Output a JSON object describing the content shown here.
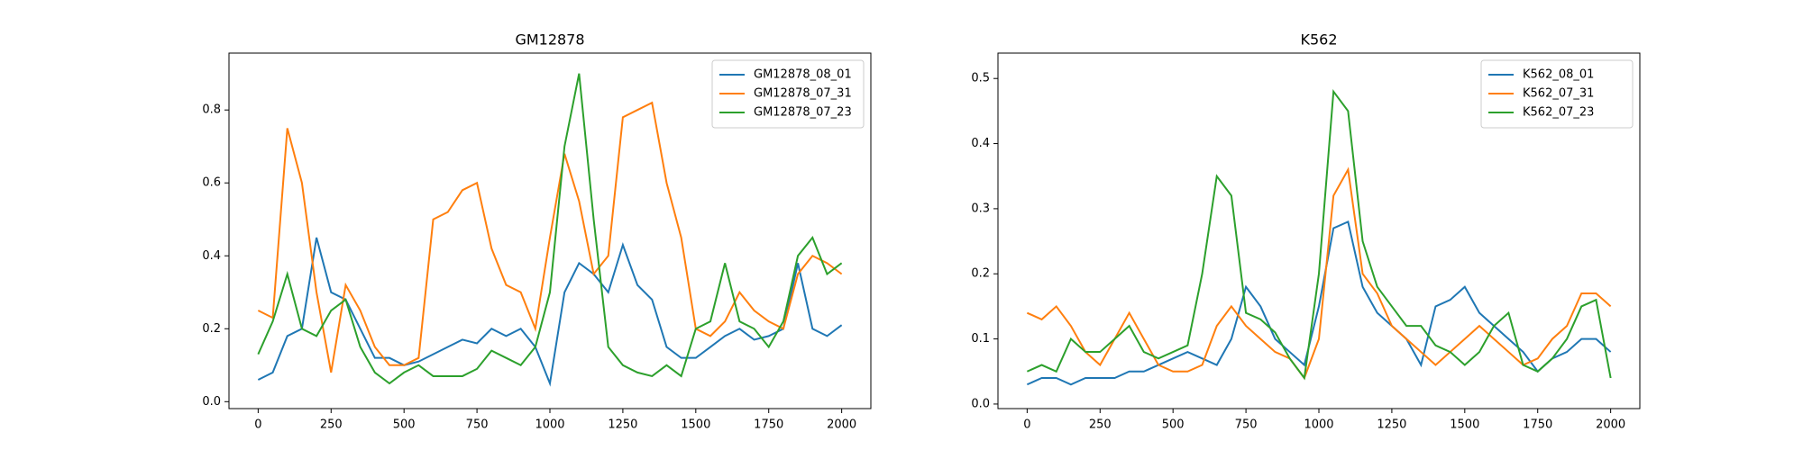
{
  "chart_data": [
    {
      "type": "line",
      "title": "GM12878",
      "x": [
        0,
        50,
        100,
        150,
        200,
        250,
        300,
        350,
        400,
        450,
        500,
        550,
        600,
        650,
        700,
        750,
        800,
        850,
        900,
        950,
        1000,
        1050,
        1100,
        1150,
        1200,
        1250,
        1300,
        1350,
        1400,
        1450,
        1500,
        1550,
        1600,
        1650,
        1700,
        1750,
        1800,
        1850,
        1900,
        1950,
        2000
      ],
      "series": [
        {
          "name": "GM12878_08_01",
          "color": "#1f77b4",
          "values": [
            0.06,
            0.08,
            0.18,
            0.2,
            0.45,
            0.3,
            0.28,
            0.2,
            0.12,
            0.12,
            0.1,
            0.11,
            0.13,
            0.15,
            0.17,
            0.16,
            0.2,
            0.18,
            0.2,
            0.15,
            0.05,
            0.3,
            0.38,
            0.35,
            0.3,
            0.43,
            0.32,
            0.28,
            0.15,
            0.12,
            0.12,
            0.15,
            0.18,
            0.2,
            0.17,
            0.18,
            0.2,
            0.38,
            0.2,
            0.18,
            0.21
          ]
        },
        {
          "name": "GM12878_07_31",
          "color": "#ff7f0e",
          "values": [
            0.25,
            0.23,
            0.75,
            0.6,
            0.3,
            0.08,
            0.32,
            0.25,
            0.15,
            0.1,
            0.1,
            0.12,
            0.5,
            0.52,
            0.58,
            0.6,
            0.42,
            0.32,
            0.3,
            0.2,
            0.45,
            0.68,
            0.55,
            0.35,
            0.4,
            0.78,
            0.8,
            0.82,
            0.6,
            0.45,
            0.2,
            0.18,
            0.22,
            0.3,
            0.25,
            0.22,
            0.2,
            0.35,
            0.4,
            0.38,
            0.35
          ]
        },
        {
          "name": "GM12878_07_23",
          "color": "#2ca02c",
          "values": [
            0.13,
            0.22,
            0.35,
            0.2,
            0.18,
            0.25,
            0.28,
            0.15,
            0.08,
            0.05,
            0.08,
            0.1,
            0.07,
            0.07,
            0.07,
            0.09,
            0.14,
            0.12,
            0.1,
            0.15,
            0.3,
            0.7,
            0.9,
            0.5,
            0.15,
            0.1,
            0.08,
            0.07,
            0.1,
            0.07,
            0.2,
            0.22,
            0.38,
            0.22,
            0.2,
            0.15,
            0.22,
            0.4,
            0.45,
            0.35,
            0.38
          ]
        }
      ],
      "xlim": [
        -100,
        2100
      ],
      "xticks": [
        0,
        250,
        500,
        750,
        1000,
        1250,
        1500,
        1750,
        2000
      ],
      "ylim": [
        -0.019,
        0.956
      ],
      "yticks": [
        {
          "value": 0,
          "label": "0.0"
        },
        0.2,
        0.4,
        0.6,
        0.8
      ],
      "legend": "upper right"
    },
    {
      "type": "line",
      "title": "K562",
      "x": [
        0,
        50,
        100,
        150,
        200,
        250,
        300,
        350,
        400,
        450,
        500,
        550,
        600,
        650,
        700,
        750,
        800,
        850,
        900,
        950,
        1000,
        1050,
        1100,
        1150,
        1200,
        1250,
        1300,
        1350,
        1400,
        1450,
        1500,
        1550,
        1600,
        1650,
        1700,
        1750,
        1800,
        1850,
        1900,
        1950,
        2000
      ],
      "series": [
        {
          "name": "K562_08_01",
          "color": "#1f77b4",
          "values": [
            0.03,
            0.04,
            0.04,
            0.03,
            0.04,
            0.04,
            0.04,
            0.05,
            0.05,
            0.06,
            0.07,
            0.08,
            0.07,
            0.06,
            0.1,
            0.18,
            0.15,
            0.1,
            0.08,
            0.06,
            0.15,
            0.27,
            0.28,
            0.18,
            0.14,
            0.12,
            0.1,
            0.06,
            0.15,
            0.16,
            0.18,
            0.14,
            0.12,
            0.1,
            0.08,
            0.05,
            0.07,
            0.08,
            0.1,
            0.1,
            0.08
          ]
        },
        {
          "name": "K562_07_31",
          "color": "#ff7f0e",
          "values": [
            0.14,
            0.13,
            0.15,
            0.12,
            0.08,
            0.06,
            0.1,
            0.14,
            0.1,
            0.06,
            0.05,
            0.05,
            0.06,
            0.12,
            0.15,
            0.12,
            0.1,
            0.08,
            0.07,
            0.04,
            0.1,
            0.32,
            0.36,
            0.2,
            0.17,
            0.12,
            0.1,
            0.08,
            0.06,
            0.08,
            0.1,
            0.12,
            0.1,
            0.08,
            0.06,
            0.07,
            0.1,
            0.12,
            0.17,
            0.17,
            0.15
          ]
        },
        {
          "name": "K562_07_23",
          "color": "#2ca02c",
          "values": [
            0.05,
            0.06,
            0.05,
            0.1,
            0.08,
            0.08,
            0.1,
            0.12,
            0.08,
            0.07,
            0.08,
            0.09,
            0.2,
            0.35,
            0.32,
            0.14,
            0.13,
            0.11,
            0.07,
            0.04,
            0.2,
            0.48,
            0.45,
            0.25,
            0.18,
            0.15,
            0.12,
            0.12,
            0.09,
            0.08,
            0.06,
            0.08,
            0.12,
            0.14,
            0.06,
            0.05,
            0.07,
            0.1,
            0.15,
            0.16,
            0.04
          ]
        }
      ],
      "xlim": [
        -100,
        2100
      ],
      "xticks": [
        0,
        250,
        500,
        750,
        1000,
        1250,
        1500,
        1750,
        2000
      ],
      "ylim": [
        -0.007,
        0.539
      ],
      "yticks": [
        {
          "value": 0,
          "label": "0.0"
        },
        0.1,
        0.2,
        0.3,
        0.4,
        0.5
      ],
      "legend": "upper right"
    }
  ]
}
